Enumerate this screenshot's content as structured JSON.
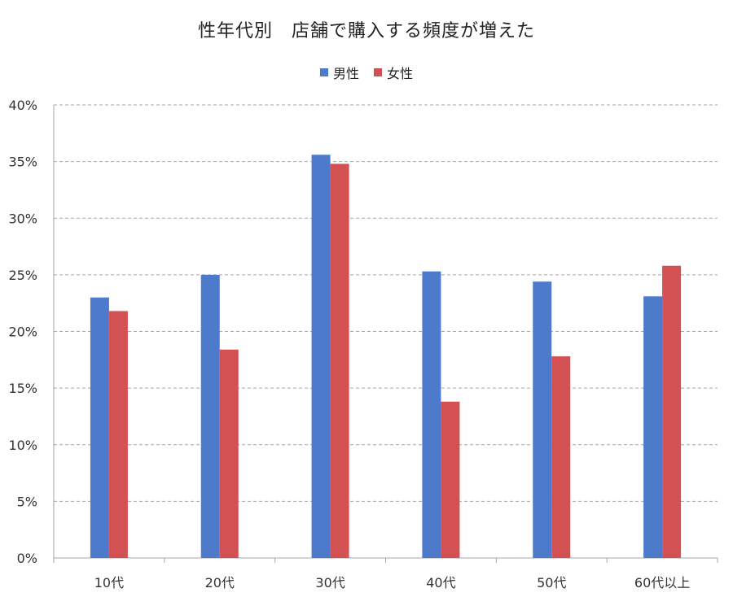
{
  "chart_data": {
    "type": "bar",
    "title": "性年代別　店舗で購入する頻度が増えた",
    "categories": [
      "10代",
      "20代",
      "30代",
      "40代",
      "50代",
      "60代以上"
    ],
    "series": [
      {
        "name": "男性",
        "color": "#4e7acb",
        "values": [
          23.0,
          25.0,
          35.6,
          25.3,
          24.4,
          23.1
        ]
      },
      {
        "name": "女性",
        "color": "#d35152",
        "values": [
          21.8,
          18.4,
          34.8,
          13.8,
          17.8,
          25.8
        ]
      }
    ],
    "ylim": [
      0,
      40
    ],
    "yticks": [
      0,
      5,
      10,
      15,
      20,
      25,
      30,
      35,
      40
    ],
    "ytick_labels": [
      "0%",
      "5%",
      "10%",
      "15%",
      "20%",
      "25%",
      "30%",
      "35%",
      "40%"
    ],
    "grid": true,
    "legend_position": "top-center",
    "xlabel": "",
    "ylabel": ""
  }
}
